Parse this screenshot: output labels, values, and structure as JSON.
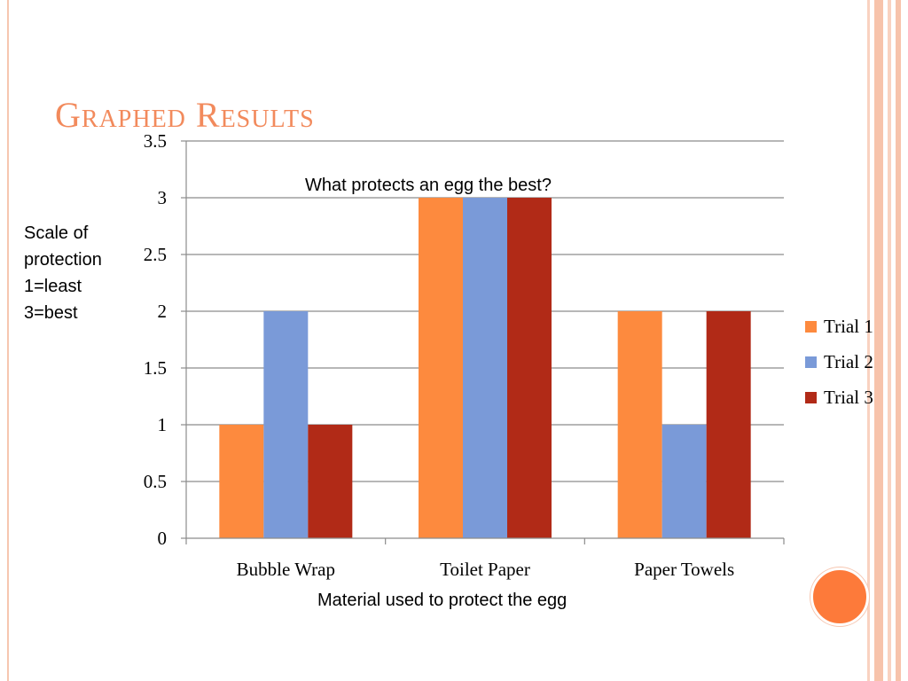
{
  "slide": {
    "title": "Graphed Results",
    "accent_color": "#f28a5c",
    "decoration_color": "#fd7a3a"
  },
  "chart_data": {
    "type": "bar",
    "title": "What protects an egg the best?",
    "xlabel": "Material used to protect the egg",
    "ylabel_lines": [
      "Scale of",
      "protection",
      "1=least",
      "3=best"
    ],
    "categories": [
      "Bubble Wrap",
      "Toilet Paper",
      "Paper Towels"
    ],
    "series": [
      {
        "name": "Trial 1",
        "color": "#fd8a3e",
        "values": [
          1,
          3,
          2
        ]
      },
      {
        "name": "Trial 2",
        "color": "#7a9ad8",
        "values": [
          2,
          3,
          1
        ]
      },
      {
        "name": "Trial 3",
        "color": "#b12a17",
        "values": [
          1,
          3,
          2
        ]
      }
    ],
    "ylim": [
      0,
      3.5
    ],
    "yticks": [
      "0",
      "0.5",
      "1",
      "1.5",
      "2",
      "2.5",
      "3",
      "3.5"
    ],
    "ytick_values": [
      0,
      0.5,
      1,
      1.5,
      2,
      2.5,
      3,
      3.5
    ],
    "grid": true,
    "legend": "right"
  }
}
